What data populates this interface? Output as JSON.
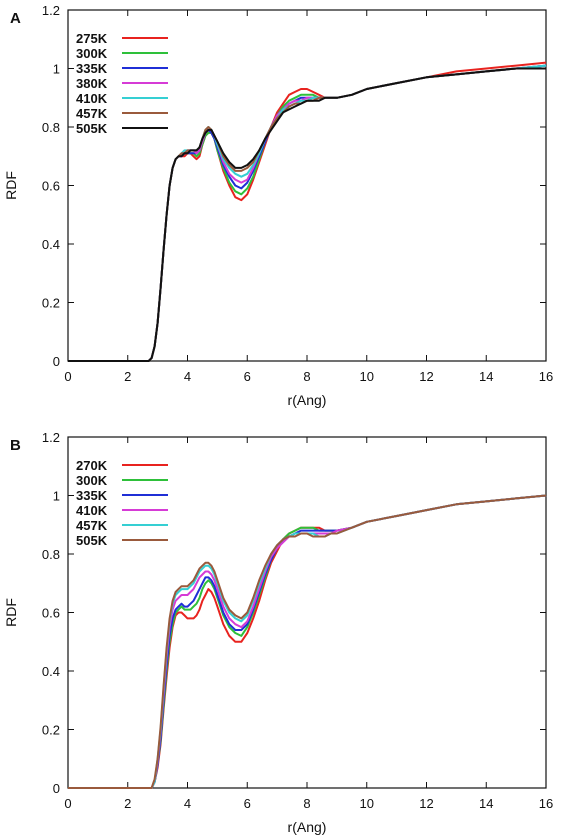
{
  "chart_data": [
    {
      "panel_label": "A",
      "type": "line",
      "xlabel": "r(Ang)",
      "ylabel": "RDF",
      "xlim": [
        0,
        16
      ],
      "ylim": [
        0,
        1.2
      ],
      "xticks": [
        "0",
        "2",
        "4",
        "6",
        "8",
        "10",
        "12",
        "14",
        "16"
      ],
      "yticks": [
        "0",
        "0.2",
        "0.4",
        "0.6",
        "0.8",
        "1",
        "1.2"
      ],
      "grid": false,
      "legend_position": "top-left",
      "x": [
        0,
        2.7,
        2.8,
        2.9,
        3.0,
        3.1,
        3.2,
        3.3,
        3.4,
        3.5,
        3.6,
        3.7,
        3.8,
        3.9,
        4.0,
        4.1,
        4.2,
        4.3,
        4.4,
        4.5,
        4.6,
        4.7,
        4.8,
        4.9,
        5.0,
        5.2,
        5.4,
        5.6,
        5.8,
        6.0,
        6.2,
        6.4,
        6.6,
        6.8,
        7.0,
        7.2,
        7.4,
        7.6,
        7.8,
        8.0,
        8.2,
        8.4,
        8.6,
        8.8,
        9.0,
        9.5,
        10,
        11,
        12,
        13,
        14,
        15,
        16
      ],
      "series": [
        {
          "name": "275K",
          "color": "#e8231f",
          "values": [
            0,
            0,
            0.01,
            0.05,
            0.13,
            0.25,
            0.38,
            0.5,
            0.6,
            0.66,
            0.69,
            0.7,
            0.7,
            0.7,
            0.71,
            0.71,
            0.7,
            0.69,
            0.7,
            0.74,
            0.77,
            0.78,
            0.78,
            0.76,
            0.72,
            0.65,
            0.6,
            0.56,
            0.55,
            0.57,
            0.62,
            0.68,
            0.74,
            0.8,
            0.85,
            0.88,
            0.91,
            0.92,
            0.93,
            0.93,
            0.92,
            0.91,
            0.9,
            0.9,
            0.9,
            0.91,
            0.93,
            0.95,
            0.97,
            0.99,
            1.0,
            1.01,
            1.02
          ]
        },
        {
          "name": "300K",
          "color": "#2ec03a",
          "values": [
            0,
            0,
            0.01,
            0.05,
            0.13,
            0.25,
            0.38,
            0.5,
            0.6,
            0.66,
            0.69,
            0.7,
            0.7,
            0.71,
            0.71,
            0.71,
            0.71,
            0.7,
            0.71,
            0.74,
            0.77,
            0.78,
            0.78,
            0.76,
            0.72,
            0.66,
            0.61,
            0.58,
            0.57,
            0.59,
            0.63,
            0.69,
            0.75,
            0.8,
            0.84,
            0.87,
            0.89,
            0.9,
            0.91,
            0.91,
            0.91,
            0.9,
            0.9,
            0.9,
            0.9,
            0.91,
            0.93,
            0.95,
            0.97,
            0.98,
            0.99,
            1.0,
            1.01
          ]
        },
        {
          "name": "335K",
          "color": "#1f2fd6",
          "values": [
            0,
            0,
            0.01,
            0.05,
            0.13,
            0.25,
            0.38,
            0.5,
            0.6,
            0.66,
            0.69,
            0.7,
            0.7,
            0.71,
            0.71,
            0.71,
            0.71,
            0.71,
            0.72,
            0.75,
            0.78,
            0.79,
            0.78,
            0.76,
            0.73,
            0.67,
            0.63,
            0.6,
            0.59,
            0.61,
            0.65,
            0.7,
            0.75,
            0.8,
            0.84,
            0.86,
            0.88,
            0.89,
            0.9,
            0.9,
            0.9,
            0.9,
            0.9,
            0.9,
            0.9,
            0.91,
            0.93,
            0.95,
            0.97,
            0.98,
            0.99,
            1.0,
            1.01
          ]
        },
        {
          "name": "380K",
          "color": "#d63bd6",
          "values": [
            0,
            0,
            0.01,
            0.05,
            0.13,
            0.25,
            0.38,
            0.5,
            0.6,
            0.66,
            0.69,
            0.7,
            0.7,
            0.71,
            0.72,
            0.72,
            0.72,
            0.71,
            0.72,
            0.75,
            0.78,
            0.79,
            0.79,
            0.77,
            0.74,
            0.68,
            0.64,
            0.62,
            0.61,
            0.62,
            0.66,
            0.71,
            0.76,
            0.8,
            0.84,
            0.86,
            0.88,
            0.89,
            0.89,
            0.9,
            0.9,
            0.9,
            0.9,
            0.9,
            0.9,
            0.91,
            0.93,
            0.95,
            0.97,
            0.98,
            0.99,
            1.0,
            1.01
          ]
        },
        {
          "name": "410K",
          "color": "#35cfd3",
          "values": [
            0,
            0,
            0.01,
            0.05,
            0.13,
            0.25,
            0.38,
            0.5,
            0.6,
            0.66,
            0.69,
            0.7,
            0.71,
            0.72,
            0.72,
            0.72,
            0.72,
            0.72,
            0.73,
            0.76,
            0.79,
            0.8,
            0.79,
            0.77,
            0.74,
            0.69,
            0.66,
            0.64,
            0.63,
            0.64,
            0.67,
            0.71,
            0.76,
            0.8,
            0.83,
            0.86,
            0.87,
            0.88,
            0.89,
            0.89,
            0.9,
            0.9,
            0.9,
            0.9,
            0.9,
            0.91,
            0.93,
            0.95,
            0.97,
            0.98,
            0.99,
            1.0,
            1.01
          ]
        },
        {
          "name": "457K",
          "color": "#9a5a3c",
          "values": [
            0,
            0,
            0.01,
            0.05,
            0.13,
            0.25,
            0.38,
            0.5,
            0.6,
            0.66,
            0.69,
            0.7,
            0.71,
            0.71,
            0.72,
            0.72,
            0.72,
            0.72,
            0.73,
            0.76,
            0.79,
            0.8,
            0.79,
            0.77,
            0.75,
            0.7,
            0.67,
            0.65,
            0.65,
            0.66,
            0.68,
            0.72,
            0.76,
            0.8,
            0.83,
            0.85,
            0.87,
            0.88,
            0.88,
            0.89,
            0.89,
            0.9,
            0.9,
            0.9,
            0.9,
            0.91,
            0.93,
            0.95,
            0.97,
            0.98,
            0.99,
            1.0,
            1.0
          ]
        },
        {
          "name": "505K",
          "color": "#111111",
          "values": [
            0,
            0,
            0.01,
            0.05,
            0.13,
            0.25,
            0.38,
            0.5,
            0.6,
            0.66,
            0.69,
            0.7,
            0.7,
            0.71,
            0.71,
            0.72,
            0.72,
            0.72,
            0.73,
            0.76,
            0.78,
            0.79,
            0.79,
            0.77,
            0.75,
            0.71,
            0.68,
            0.66,
            0.66,
            0.67,
            0.69,
            0.72,
            0.76,
            0.79,
            0.82,
            0.85,
            0.86,
            0.87,
            0.88,
            0.89,
            0.89,
            0.89,
            0.9,
            0.9,
            0.9,
            0.91,
            0.93,
            0.95,
            0.97,
            0.98,
            0.99,
            1.0,
            1.0
          ]
        }
      ]
    },
    {
      "panel_label": "B",
      "type": "line",
      "xlabel": "r(Ang)",
      "ylabel": "RDF",
      "xlim": [
        0,
        16
      ],
      "ylim": [
        0,
        1.2
      ],
      "xticks": [
        "0",
        "2",
        "4",
        "6",
        "8",
        "10",
        "12",
        "14",
        "16"
      ],
      "yticks": [
        "0",
        "0.2",
        "0.4",
        "0.6",
        "0.8",
        "1",
        "1.2"
      ],
      "grid": false,
      "legend_position": "top-left",
      "x": [
        0,
        2.7,
        2.8,
        2.9,
        3.0,
        3.1,
        3.2,
        3.3,
        3.4,
        3.5,
        3.6,
        3.7,
        3.8,
        3.9,
        4.0,
        4.1,
        4.2,
        4.3,
        4.4,
        4.5,
        4.6,
        4.7,
        4.8,
        4.9,
        5.0,
        5.2,
        5.4,
        5.6,
        5.8,
        6.0,
        6.2,
        6.4,
        6.6,
        6.8,
        7.0,
        7.2,
        7.4,
        7.6,
        7.8,
        8.0,
        8.2,
        8.4,
        8.6,
        8.8,
        9.0,
        9.5,
        10,
        11,
        12,
        13,
        14,
        15,
        16
      ],
      "series": [
        {
          "name": "270K",
          "color": "#e8231f",
          "values": [
            0,
            0,
            0.0,
            0.02,
            0.07,
            0.15,
            0.27,
            0.38,
            0.48,
            0.55,
            0.59,
            0.6,
            0.6,
            0.59,
            0.58,
            0.58,
            0.58,
            0.59,
            0.61,
            0.64,
            0.66,
            0.68,
            0.67,
            0.65,
            0.62,
            0.56,
            0.52,
            0.5,
            0.5,
            0.53,
            0.58,
            0.64,
            0.71,
            0.77,
            0.81,
            0.85,
            0.87,
            0.88,
            0.89,
            0.89,
            0.89,
            0.89,
            0.88,
            0.88,
            0.88,
            0.89,
            0.91,
            0.93,
            0.95,
            0.97,
            0.98,
            0.99,
            1.0
          ]
        },
        {
          "name": "300K",
          "color": "#2ec03a",
          "values": [
            0,
            0,
            0.0,
            0.02,
            0.08,
            0.16,
            0.28,
            0.4,
            0.5,
            0.56,
            0.6,
            0.61,
            0.62,
            0.61,
            0.61,
            0.61,
            0.62,
            0.63,
            0.65,
            0.68,
            0.7,
            0.71,
            0.7,
            0.68,
            0.65,
            0.59,
            0.55,
            0.53,
            0.52,
            0.55,
            0.6,
            0.66,
            0.72,
            0.78,
            0.82,
            0.85,
            0.87,
            0.88,
            0.89,
            0.89,
            0.89,
            0.88,
            0.88,
            0.88,
            0.88,
            0.89,
            0.91,
            0.93,
            0.95,
            0.97,
            0.98,
            0.99,
            1.0
          ]
        },
        {
          "name": "335K",
          "color": "#1f2fd6",
          "values": [
            0,
            0,
            0.0,
            0.02,
            0.08,
            0.17,
            0.3,
            0.42,
            0.52,
            0.58,
            0.61,
            0.62,
            0.63,
            0.62,
            0.62,
            0.63,
            0.64,
            0.66,
            0.68,
            0.7,
            0.72,
            0.72,
            0.71,
            0.69,
            0.66,
            0.6,
            0.56,
            0.54,
            0.54,
            0.56,
            0.61,
            0.67,
            0.73,
            0.78,
            0.82,
            0.85,
            0.86,
            0.87,
            0.88,
            0.88,
            0.88,
            0.88,
            0.88,
            0.88,
            0.88,
            0.89,
            0.91,
            0.93,
            0.95,
            0.97,
            0.98,
            0.99,
            1.0
          ]
        },
        {
          "name": "410K",
          "color": "#d63bd6",
          "values": [
            0,
            0,
            0.0,
            0.02,
            0.09,
            0.19,
            0.32,
            0.45,
            0.55,
            0.61,
            0.64,
            0.65,
            0.66,
            0.66,
            0.66,
            0.67,
            0.68,
            0.7,
            0.72,
            0.73,
            0.74,
            0.74,
            0.73,
            0.71,
            0.68,
            0.62,
            0.58,
            0.56,
            0.55,
            0.57,
            0.62,
            0.68,
            0.74,
            0.79,
            0.82,
            0.84,
            0.86,
            0.87,
            0.87,
            0.87,
            0.87,
            0.87,
            0.87,
            0.87,
            0.88,
            0.89,
            0.91,
            0.93,
            0.95,
            0.97,
            0.98,
            0.99,
            1.0
          ]
        },
        {
          "name": "457K",
          "color": "#35cfd3",
          "values": [
            0,
            0,
            0.0,
            0.02,
            0.1,
            0.2,
            0.34,
            0.47,
            0.57,
            0.63,
            0.66,
            0.67,
            0.68,
            0.68,
            0.68,
            0.69,
            0.7,
            0.72,
            0.74,
            0.75,
            0.76,
            0.76,
            0.75,
            0.73,
            0.7,
            0.64,
            0.6,
            0.58,
            0.57,
            0.59,
            0.64,
            0.7,
            0.75,
            0.8,
            0.83,
            0.85,
            0.86,
            0.87,
            0.87,
            0.87,
            0.87,
            0.86,
            0.86,
            0.87,
            0.87,
            0.89,
            0.91,
            0.93,
            0.95,
            0.97,
            0.98,
            0.99,
            1.0
          ]
        },
        {
          "name": "505K",
          "color": "#9a5a3c",
          "values": [
            0,
            0,
            0.0,
            0.03,
            0.1,
            0.21,
            0.35,
            0.48,
            0.58,
            0.64,
            0.67,
            0.68,
            0.69,
            0.69,
            0.69,
            0.7,
            0.71,
            0.73,
            0.75,
            0.76,
            0.77,
            0.77,
            0.76,
            0.74,
            0.71,
            0.65,
            0.61,
            0.59,
            0.58,
            0.6,
            0.65,
            0.71,
            0.76,
            0.8,
            0.83,
            0.85,
            0.86,
            0.86,
            0.87,
            0.87,
            0.86,
            0.86,
            0.86,
            0.87,
            0.87,
            0.89,
            0.91,
            0.93,
            0.95,
            0.97,
            0.98,
            0.99,
            1.0
          ]
        }
      ]
    }
  ]
}
